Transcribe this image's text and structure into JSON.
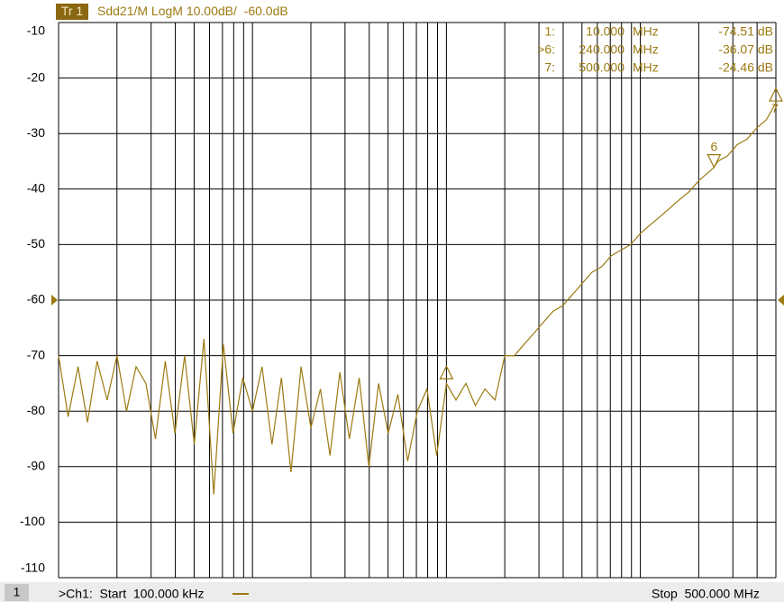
{
  "chart_data": {
    "type": "line",
    "trace_label": "Tr 1",
    "title": "Sdd21/M LogM 10.00dB/  -60.0dB",
    "xscale": "log",
    "grid": true,
    "xlim": [
      0.1,
      500
    ],
    "xticks": [
      0.1,
      0.2,
      0.3,
      0.4,
      0.5,
      0.6,
      0.7,
      0.8,
      0.9,
      1,
      2,
      3,
      4,
      5,
      6,
      7,
      8,
      9,
      10,
      20,
      30,
      40,
      50,
      60,
      70,
      80,
      90,
      100,
      200,
      300,
      400,
      500
    ],
    "ylim": [
      -110,
      -10
    ],
    "yticks": [
      -10,
      -20,
      -30,
      -40,
      -50,
      -60,
      -70,
      -80,
      -90,
      -100,
      -110
    ],
    "reference_level": -60,
    "series": [
      {
        "color": "#9c7a12",
        "x": [
          0.1,
          0.112,
          0.126,
          0.141,
          0.158,
          0.178,
          0.2,
          0.224,
          0.251,
          0.282,
          0.316,
          0.355,
          0.398,
          0.447,
          0.501,
          0.562,
          0.631,
          0.708,
          0.794,
          0.891,
          1,
          1.12,
          1.26,
          1.41,
          1.58,
          1.78,
          2,
          2.24,
          2.51,
          2.82,
          3.16,
          3.55,
          3.98,
          4.47,
          5.01,
          5.62,
          6.31,
          7.08,
          7.94,
          8.91,
          10,
          11.2,
          12.6,
          14.1,
          15.8,
          17.8,
          20,
          22.4,
          25.1,
          28.2,
          31.6,
          35.5,
          39.8,
          44.7,
          50.1,
          56.2,
          63.1,
          70.8,
          79.4,
          89.1,
          100,
          112,
          126,
          141,
          158,
          178,
          200,
          224,
          240,
          251,
          282,
          316,
          355,
          398,
          447,
          500
        ],
        "values": [
          -70,
          -81,
          -72,
          -82,
          -71,
          -78,
          -70,
          -80,
          -72,
          -75,
          -85,
          -71,
          -84,
          -70,
          -86,
          -67,
          -95,
          -68,
          -84,
          -74,
          -80,
          -72,
          -86,
          -74,
          -91,
          -72,
          -83,
          -76,
          -88,
          -73,
          -85,
          -74,
          -90,
          -75,
          -84,
          -77,
          -89,
          -80,
          -76,
          -88,
          -75,
          -78,
          -75,
          -79,
          -76,
          -78,
          -70,
          -70,
          -68,
          -66,
          -64,
          -62,
          -61,
          -59,
          -57,
          -55,
          -54,
          -52,
          -51,
          -50,
          -48,
          -46.5,
          -45,
          -43.5,
          -42,
          -40.5,
          -38.5,
          -37,
          -36.07,
          -35,
          -34,
          -32,
          -31,
          -29,
          -27.5,
          -24.46
        ]
      }
    ],
    "markers": [
      {
        "label": "1:",
        "id": 1,
        "x": 10,
        "x_label": "10.000",
        "unit": "MHz",
        "value": -74.51,
        "value_label": "-74.51 dB",
        "direction": "up"
      },
      {
        "label": ">6:",
        "id": 6,
        "x": 240,
        "x_label": "240.000",
        "unit": "MHz",
        "value": -36.07,
        "value_label": "-36.07 dB",
        "direction": "down"
      },
      {
        "label": "7:",
        "id": 7,
        "x": 500,
        "x_label": "500.000",
        "unit": "MHz",
        "value": -24.46,
        "value_label": "-24.46 dB",
        "direction": "up"
      }
    ],
    "channel_number": "1",
    "footer_left": ">Ch1:  Start  100.000 kHz",
    "footer_right": "Stop  500.000 MHz"
  }
}
